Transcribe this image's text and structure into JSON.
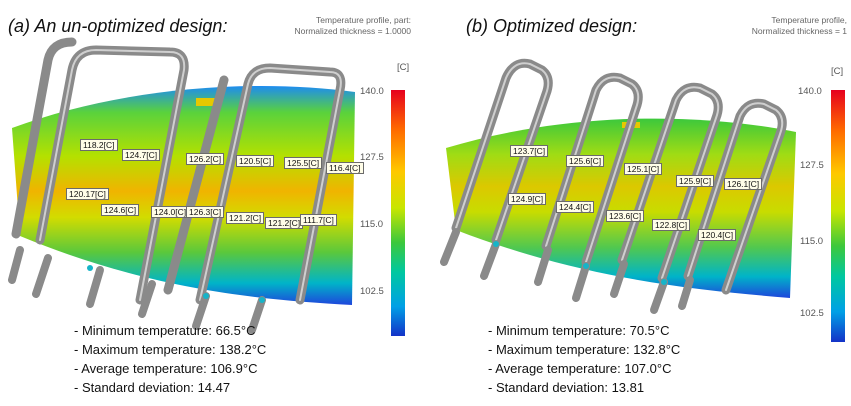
{
  "panels": [
    {
      "title": "(a) An un-optimized design:",
      "sim_header": [
        "Temperature profile, part:",
        "Normalized thickness = 1.0000"
      ],
      "scale": {
        "unit": "[C]",
        "ticks": [
          "140.0",
          "127.5",
          "115.0",
          "102.5"
        ]
      },
      "labels": [
        "118.2[C]",
        "124.7[C]",
        "126.2[C]",
        "120.5[C]",
        "125.5[C]",
        "116.4[C]",
        "120.17[C]",
        "124.6[C]",
        "124.0[C]",
        "126.3[C]",
        "121.2[C]",
        "121.2[C]",
        "111.7[C]"
      ],
      "stats": [
        "- Minimum temperature: 66.5°C",
        "- Maximum temperature: 138.2°C",
        "- Average temperature: 106.9°C",
        "- Standard deviation: 14.47"
      ]
    },
    {
      "title": "(b) Optimized design:",
      "sim_header": [
        "Temperature profile,",
        "Normalized thickness = 1"
      ],
      "scale": {
        "unit": "[C]",
        "ticks": [
          "140.0",
          "127.5",
          "115.0",
          "102.5"
        ]
      },
      "labels": [
        "123.7[C]",
        "125.6[C]",
        "125.1[C]",
        "125.9[C]",
        "126.1[C]",
        "124.9[C]",
        "124.4[C]",
        "123.6[C]",
        "122.8[C]",
        "120.4[C]"
      ],
      "stats": [
        "- Minimum temperature: 70.5°C",
        "- Maximum temperature: 132.8°C",
        "- Average temperature: 107.0°C",
        "- Standard deviation: 13.81"
      ]
    }
  ],
  "colors": {
    "hot": "#e6001e",
    "warm": "#ffc800",
    "mid": "#3cc83c",
    "cool": "#1432c8",
    "pipe": "#8e8e8e"
  }
}
